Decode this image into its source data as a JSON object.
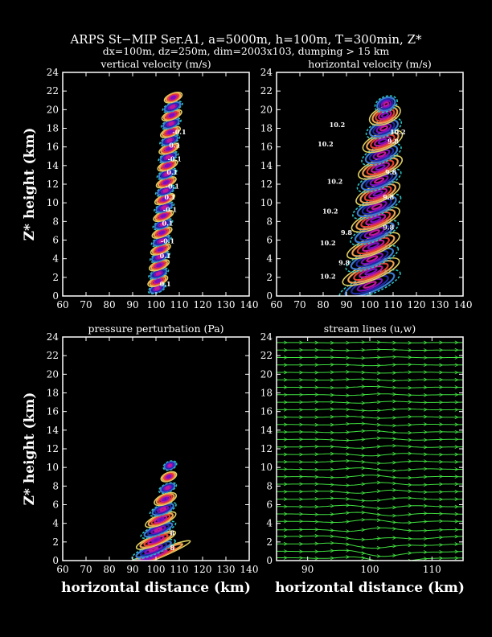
{
  "header": {
    "title": "ARPS St−MIP Ser.A1, a=5000m, h=100m, T=300min, Z*",
    "subtitle": "dx=100m, dz=250m, dim=2003x103, dumping > 15 km"
  },
  "colors": {
    "background": "#000000",
    "frame": "#ffffff",
    "contour_palette": [
      "#1f2aa8",
      "#3a7bd5",
      "#2ec4c4",
      "#e0d060",
      "#f0a050",
      "#e84030",
      "#c0189a",
      "#7a10c0"
    ],
    "streamline": "#40e040"
  },
  "chart_data": [
    {
      "type": "contour",
      "title": "vertical velocity (m/s)",
      "xlabel": "",
      "ylabel": "Z* height (km)",
      "xlim": [
        60,
        140
      ],
      "ylim": [
        0,
        24
      ],
      "xticks": [
        60,
        70,
        80,
        90,
        100,
        110,
        120,
        130,
        140
      ],
      "yticks": [
        0,
        2,
        4,
        6,
        8,
        10,
        12,
        14,
        16,
        18,
        20,
        22,
        24
      ],
      "lobes": [
        {
          "x": 100.5,
          "y": 0.8,
          "w": 8,
          "h": 0.5,
          "sign": "-"
        },
        {
          "x": 100.8,
          "y": 1.6,
          "w": 9,
          "h": 0.5,
          "sign": "+"
        },
        {
          "x": 101.1,
          "y": 2.4,
          "w": 9,
          "h": 0.5,
          "sign": "-"
        },
        {
          "x": 101.4,
          "y": 3.3,
          "w": 9,
          "h": 0.5,
          "sign": "+"
        },
        {
          "x": 101.7,
          "y": 4.2,
          "w": 9,
          "h": 0.5,
          "sign": "-"
        },
        {
          "x": 102.0,
          "y": 5.0,
          "w": 9,
          "h": 0.5,
          "sign": "+"
        },
        {
          "x": 102.3,
          "y": 5.9,
          "w": 9,
          "h": 0.5,
          "sign": "-"
        },
        {
          "x": 102.6,
          "y": 6.8,
          "w": 9,
          "h": 0.5,
          "sign": "+"
        },
        {
          "x": 102.9,
          "y": 7.7,
          "w": 9,
          "h": 0.5,
          "sign": "-"
        },
        {
          "x": 103.2,
          "y": 8.6,
          "w": 9,
          "h": 0.5,
          "sign": "+"
        },
        {
          "x": 103.5,
          "y": 9.5,
          "w": 9,
          "h": 0.5,
          "sign": "-"
        },
        {
          "x": 103.8,
          "y": 10.4,
          "w": 9,
          "h": 0.5,
          "sign": "+"
        },
        {
          "x": 104.1,
          "y": 11.3,
          "w": 9,
          "h": 0.5,
          "sign": "-"
        },
        {
          "x": 104.4,
          "y": 12.2,
          "w": 9,
          "h": 0.5,
          "sign": "+"
        },
        {
          "x": 104.7,
          "y": 13.1,
          "w": 9,
          "h": 0.5,
          "sign": "-"
        },
        {
          "x": 105.0,
          "y": 14.0,
          "w": 9,
          "h": 0.5,
          "sign": "+"
        },
        {
          "x": 105.3,
          "y": 14.9,
          "w": 9,
          "h": 0.5,
          "sign": "-"
        },
        {
          "x": 105.6,
          "y": 15.8,
          "w": 9,
          "h": 0.5,
          "sign": "+"
        },
        {
          "x": 105.9,
          "y": 16.7,
          "w": 9,
          "h": 0.5,
          "sign": "-"
        },
        {
          "x": 106.2,
          "y": 17.6,
          "w": 9,
          "h": 0.5,
          "sign": "+"
        },
        {
          "x": 106.5,
          "y": 18.5,
          "w": 9,
          "h": 0.5,
          "sign": "-"
        },
        {
          "x": 106.8,
          "y": 19.4,
          "w": 9,
          "h": 0.5,
          "sign": "+"
        },
        {
          "x": 107.1,
          "y": 20.3,
          "w": 9,
          "h": 0.5,
          "sign": "-"
        },
        {
          "x": 107.4,
          "y": 21.3,
          "w": 8,
          "h": 0.5,
          "sign": "+"
        }
      ],
      "labels": [
        {
          "text": "0.1",
          "x": 104,
          "y": 1.3
        },
        {
          "text": "0.1",
          "x": 104,
          "y": 4.3
        },
        {
          "text": "-0.1",
          "x": 105,
          "y": 5.9
        },
        {
          "text": "0.1",
          "x": 105,
          "y": 7.8
        },
        {
          "text": "-0.1",
          "x": 106,
          "y": 9.3
        },
        {
          "text": "0.1",
          "x": 106,
          "y": 10.6
        },
        {
          "text": "-0.1",
          "x": 107,
          "y": 11.8
        },
        {
          "text": "0.1",
          "x": 107,
          "y": 13.3
        },
        {
          "text": "-0.1",
          "x": 108,
          "y": 14.7
        },
        {
          "text": "0.1",
          "x": 108,
          "y": 16.2
        },
        {
          "text": "-0.1",
          "x": 110,
          "y": 17.6
        }
      ]
    },
    {
      "type": "contour",
      "title": "horizontal velocity (m/s)",
      "xlabel": "",
      "ylabel": "",
      "xlim": [
        60,
        140
      ],
      "ylim": [
        0,
        24
      ],
      "xticks": [
        60,
        70,
        80,
        90,
        100,
        110,
        120,
        130,
        140
      ],
      "yticks": [
        0,
        2,
        4,
        6,
        8,
        10,
        12,
        14,
        16,
        18,
        20,
        22,
        24
      ],
      "lobes": [
        {
          "x": 100,
          "y": 1.2,
          "w": 28,
          "h": 1.1,
          "sign": "-"
        },
        {
          "x": 100.5,
          "y": 2.6,
          "w": 26,
          "h": 1.0,
          "sign": "+"
        },
        {
          "x": 101,
          "y": 4.0,
          "w": 24,
          "h": 1.0,
          "sign": "-"
        },
        {
          "x": 101.5,
          "y": 5.4,
          "w": 24,
          "h": 1.0,
          "sign": "+"
        },
        {
          "x": 102,
          "y": 6.8,
          "w": 22,
          "h": 1.0,
          "sign": "-"
        },
        {
          "x": 102.5,
          "y": 8.2,
          "w": 22,
          "h": 1.0,
          "sign": "+"
        },
        {
          "x": 103,
          "y": 9.6,
          "w": 22,
          "h": 1.0,
          "sign": "-"
        },
        {
          "x": 103.5,
          "y": 11.0,
          "w": 20,
          "h": 1.0,
          "sign": "+"
        },
        {
          "x": 104,
          "y": 12.4,
          "w": 20,
          "h": 1.0,
          "sign": "-"
        },
        {
          "x": 104.5,
          "y": 13.8,
          "w": 20,
          "h": 1.0,
          "sign": "+"
        },
        {
          "x": 105,
          "y": 15.2,
          "w": 18,
          "h": 1.0,
          "sign": "-"
        },
        {
          "x": 105.5,
          "y": 16.6,
          "w": 18,
          "h": 1.0,
          "sign": "+"
        },
        {
          "x": 106,
          "y": 18.0,
          "w": 16,
          "h": 1.0,
          "sign": "-"
        },
        {
          "x": 106.5,
          "y": 19.4,
          "w": 14,
          "h": 1.0,
          "sign": "+"
        },
        {
          "x": 107,
          "y": 20.6,
          "w": 10,
          "h": 0.9,
          "sign": "-"
        }
      ],
      "labels": [
        {
          "text": "10.2",
          "x": 82,
          "y": 2.1
        },
        {
          "text": "9.8",
          "x": 89,
          "y": 3.6
        },
        {
          "text": "10.2",
          "x": 82,
          "y": 5.7
        },
        {
          "text": "9.8",
          "x": 90,
          "y": 6.8
        },
        {
          "text": "10.2",
          "x": 83,
          "y": 9.1
        },
        {
          "text": "9.8",
          "x": 108,
          "y": 7.4
        },
        {
          "text": "9.8",
          "x": 108,
          "y": 10.6
        },
        {
          "text": "10.2",
          "x": 85,
          "y": 12.3
        },
        {
          "text": "9.8",
          "x": 109,
          "y": 13.3
        },
        {
          "text": "10.2",
          "x": 81,
          "y": 16.3
        },
        {
          "text": "9.8",
          "x": 110,
          "y": 16.6
        },
        {
          "text": "10.2",
          "x": 86,
          "y": 18.4
        },
        {
          "text": "10.2",
          "x": 112,
          "y": 17.6
        }
      ]
    },
    {
      "type": "contour",
      "title": "pressure perturbation (Pa)",
      "xlabel": "horizontal distance (km)",
      "ylabel": "Z* height (km)",
      "xlim": [
        60,
        140
      ],
      "ylim": [
        0,
        24
      ],
      "xticks": [
        60,
        70,
        80,
        90,
        100,
        110,
        120,
        130,
        140
      ],
      "yticks": [
        0,
        2,
        4,
        6,
        8,
        10,
        12,
        14,
        16,
        18,
        20,
        22,
        24
      ],
      "lobes": [
        {
          "x": 98,
          "y": 0.4,
          "w": 36,
          "h": 0.5,
          "sign": "+"
        },
        {
          "x": 99,
          "y": 1.2,
          "w": 20,
          "h": 0.6,
          "sign": "-"
        },
        {
          "x": 100,
          "y": 2.2,
          "w": 18,
          "h": 0.6,
          "sign": "+"
        },
        {
          "x": 101,
          "y": 3.3,
          "w": 16,
          "h": 0.6,
          "sign": "-"
        },
        {
          "x": 102,
          "y": 4.4,
          "w": 14,
          "h": 0.6,
          "sign": "+"
        },
        {
          "x": 103,
          "y": 5.5,
          "w": 12,
          "h": 0.6,
          "sign": "-"
        },
        {
          "x": 104,
          "y": 6.6,
          "w": 10,
          "h": 0.6,
          "sign": "+"
        },
        {
          "x": 105,
          "y": 7.8,
          "w": 8,
          "h": 0.5,
          "sign": "-"
        },
        {
          "x": 105.5,
          "y": 9.0,
          "w": 7,
          "h": 0.5,
          "sign": "+"
        },
        {
          "x": 106,
          "y": 10.2,
          "w": 6,
          "h": 0.5,
          "sign": "-"
        }
      ],
      "labels": [
        {
          "text": "8",
          "x": 107,
          "y": 1.4
        },
        {
          "text": "8",
          "x": 107,
          "y": 3.0
        }
      ]
    },
    {
      "type": "streamline",
      "title": "stream lines (u,w)",
      "xlabel": "horizontal distance (km)",
      "ylabel": "",
      "xlim": [
        85,
        115
      ],
      "ylim": [
        0,
        24
      ],
      "xticks": [
        90,
        100,
        110
      ],
      "yticks": [
        0,
        2,
        4,
        6,
        8,
        10,
        12,
        14,
        16,
        18,
        20,
        22,
        24
      ],
      "levels": [
        0.3,
        1.0,
        1.8,
        2.6,
        3.3,
        4.2,
        5.0,
        5.8,
        6.6,
        7.4,
        8.2,
        9.0,
        9.8,
        10.6,
        11.4,
        12.2,
        13.0,
        13.8,
        14.6,
        15.4,
        16.2,
        17.0,
        17.8,
        18.6,
        19.4,
        20.2,
        21.0,
        21.8,
        22.6,
        23.4
      ]
    }
  ]
}
